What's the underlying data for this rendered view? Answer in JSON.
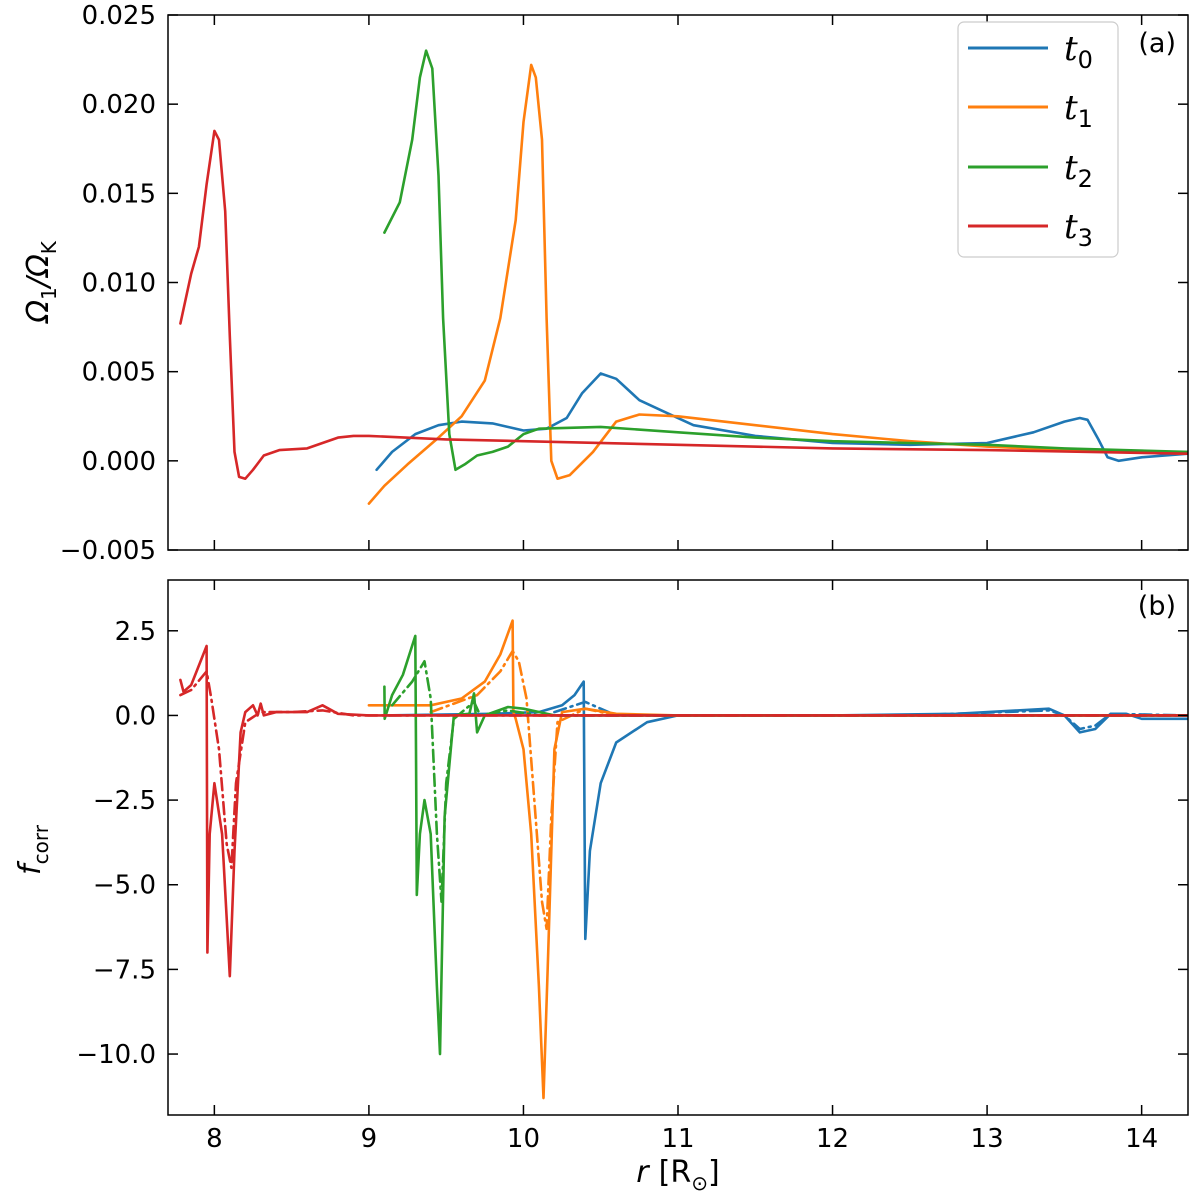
{
  "colors": {
    "t0": "#1f77b4",
    "t1": "#ff7f0e",
    "t2": "#2ca02c",
    "t3": "#d62728"
  },
  "chart_data": [
    {
      "type": "line",
      "panel_label": "(a)",
      "ylabel_main": "Ω",
      "ylabel_sub_num": "1",
      "ylabel_slash": "/Ω",
      "ylabel_sub_den": "K",
      "xlim": [
        7.7,
        14.3
      ],
      "ylim": [
        -0.005,
        0.025
      ],
      "yticks": [
        -0.005,
        0.0,
        0.005,
        0.01,
        0.015,
        0.02,
        0.025
      ],
      "ytick_labels": [
        "−0.005",
        "0.000",
        "0.005",
        "0.010",
        "0.015",
        "0.020",
        "0.025"
      ],
      "legend_position": "top-right",
      "legend": [
        {
          "base": "t",
          "sub": "0",
          "color_key": "t0"
        },
        {
          "base": "t",
          "sub": "1",
          "color_key": "t1"
        },
        {
          "base": "t",
          "sub": "2",
          "color_key": "t2"
        },
        {
          "base": "t",
          "sub": "3",
          "color_key": "t3"
        }
      ],
      "series": [
        {
          "color_key": "t0",
          "points": [
            [
              9.05,
              -0.0005
            ],
            [
              9.15,
              0.0005
            ],
            [
              9.3,
              0.0015
            ],
            [
              9.45,
              0.002
            ],
            [
              9.6,
              0.0022
            ],
            [
              9.8,
              0.0021
            ],
            [
              10.0,
              0.0017
            ],
            [
              10.15,
              0.0018
            ],
            [
              10.28,
              0.0024
            ],
            [
              10.38,
              0.0038
            ],
            [
              10.5,
              0.0049
            ],
            [
              10.6,
              0.0046
            ],
            [
              10.75,
              0.0034
            ],
            [
              10.9,
              0.0028
            ],
            [
              11.1,
              0.002
            ],
            [
              11.5,
              0.0014
            ],
            [
              12.0,
              0.001
            ],
            [
              12.5,
              0.0009
            ],
            [
              13.0,
              0.001
            ],
            [
              13.3,
              0.0016
            ],
            [
              13.5,
              0.0022
            ],
            [
              13.6,
              0.0024
            ],
            [
              13.65,
              0.0023
            ],
            [
              13.72,
              0.0012
            ],
            [
              13.78,
              0.0002
            ],
            [
              13.85,
              0.0
            ],
            [
              14.0,
              0.0002
            ],
            [
              14.3,
              0.0004
            ]
          ]
        },
        {
          "color_key": "t1",
          "points": [
            [
              9.0,
              -0.0024
            ],
            [
              9.1,
              -0.0014
            ],
            [
              9.25,
              -0.0002
            ],
            [
              9.45,
              0.0013
            ],
            [
              9.6,
              0.0025
            ],
            [
              9.75,
              0.0045
            ],
            [
              9.85,
              0.008
            ],
            [
              9.95,
              0.0135
            ],
            [
              10.0,
              0.019
            ],
            [
              10.05,
              0.0222
            ],
            [
              10.08,
              0.0215
            ],
            [
              10.12,
              0.018
            ],
            [
              10.15,
              0.008
            ],
            [
              10.18,
              0.0
            ],
            [
              10.22,
              -0.001
            ],
            [
              10.3,
              -0.0008
            ],
            [
              10.45,
              0.0005
            ],
            [
              10.6,
              0.0022
            ],
            [
              10.75,
              0.0026
            ],
            [
              11.0,
              0.0025
            ],
            [
              11.5,
              0.002
            ],
            [
              12.0,
              0.0015
            ],
            [
              12.5,
              0.0011
            ],
            [
              13.0,
              0.0008
            ],
            [
              13.5,
              0.0006
            ],
            [
              14.3,
              0.0004
            ]
          ]
        },
        {
          "color_key": "t2",
          "points": [
            [
              9.1,
              0.0128
            ],
            [
              9.2,
              0.0145
            ],
            [
              9.28,
              0.018
            ],
            [
              9.33,
              0.0215
            ],
            [
              9.37,
              0.023
            ],
            [
              9.41,
              0.022
            ],
            [
              9.45,
              0.016
            ],
            [
              9.48,
              0.008
            ],
            [
              9.52,
              0.0015
            ],
            [
              9.56,
              -0.0005
            ],
            [
              9.62,
              -0.0002
            ],
            [
              9.7,
              0.0003
            ],
            [
              9.8,
              0.0005
            ],
            [
              9.9,
              0.0008
            ],
            [
              10.0,
              0.0015
            ],
            [
              10.1,
              0.0018
            ],
            [
              10.5,
              0.0019
            ],
            [
              11.0,
              0.0016
            ],
            [
              11.5,
              0.0013
            ],
            [
              12.0,
              0.0011
            ],
            [
              12.5,
              0.001
            ],
            [
              13.0,
              0.0009
            ],
            [
              13.5,
              0.0007
            ],
            [
              14.3,
              0.0005
            ]
          ]
        },
        {
          "color_key": "t3",
          "points": [
            [
              7.78,
              0.0077
            ],
            [
              7.85,
              0.0105
            ],
            [
              7.9,
              0.012
            ],
            [
              7.95,
              0.0155
            ],
            [
              8.0,
              0.0185
            ],
            [
              8.03,
              0.018
            ],
            [
              8.07,
              0.014
            ],
            [
              8.1,
              0.007
            ],
            [
              8.13,
              0.0005
            ],
            [
              8.16,
              -0.0009
            ],
            [
              8.2,
              -0.001
            ],
            [
              8.25,
              -0.0005
            ],
            [
              8.32,
              0.0003
            ],
            [
              8.42,
              0.0006
            ],
            [
              8.6,
              0.0007
            ],
            [
              8.7,
              0.001
            ],
            [
              8.8,
              0.0013
            ],
            [
              8.9,
              0.0014
            ],
            [
              9.0,
              0.0014
            ],
            [
              9.5,
              0.0012
            ],
            [
              10.0,
              0.0011
            ],
            [
              11.0,
              0.0009
            ],
            [
              12.0,
              0.0007
            ],
            [
              13.0,
              0.0006
            ],
            [
              14.3,
              0.0004
            ]
          ]
        }
      ]
    },
    {
      "type": "line",
      "panel_label": "(b)",
      "ylabel_main": "f",
      "ylabel_sub": "corr",
      "xlabel_main": "r",
      "xlabel_unit_open": "[R",
      "xlabel_unit_sub": "⊙",
      "xlabel_unit_close": "]",
      "xlim": [
        7.7,
        14.3
      ],
      "ylim": [
        -11.8,
        4.0
      ],
      "yticks": [
        -10.0,
        -7.5,
        -5.0,
        -2.5,
        0.0,
        2.5
      ],
      "ytick_labels": [
        "−10.0",
        "−7.5",
        "−5.0",
        "−2.5",
        "0.0",
        "2.5"
      ],
      "xticks": [
        8,
        9,
        10,
        11,
        12,
        13,
        14
      ],
      "xtick_labels": [
        "8",
        "9",
        "10",
        "11",
        "12",
        "13",
        "14"
      ],
      "series": [
        {
          "color_key": "t0",
          "style": "solid",
          "points": [
            [
              9.1,
              0.0
            ],
            [
              9.8,
              0.05
            ],
            [
              10.1,
              0.1
            ],
            [
              10.25,
              0.3
            ],
            [
              10.33,
              0.6
            ],
            [
              10.39,
              1.0
            ],
            [
              10.395,
              -3.0
            ],
            [
              10.4,
              -6.6
            ],
            [
              10.43,
              -4.0
            ],
            [
              10.5,
              -2.0
            ],
            [
              10.6,
              -0.8
            ],
            [
              10.8,
              -0.2
            ],
            [
              11.0,
              0.0
            ],
            [
              12.0,
              0.0
            ],
            [
              12.8,
              0.05
            ],
            [
              13.2,
              0.15
            ],
            [
              13.4,
              0.2
            ],
            [
              13.5,
              0.0
            ],
            [
              13.6,
              -0.5
            ],
            [
              13.7,
              -0.4
            ],
            [
              13.8,
              0.05
            ],
            [
              13.9,
              0.05
            ],
            [
              14.0,
              -0.1
            ],
            [
              14.3,
              -0.1
            ]
          ]
        },
        {
          "color_key": "t0",
          "style": "dashdot",
          "points": [
            [
              10.2,
              0.1
            ],
            [
              10.4,
              0.4
            ],
            [
              10.5,
              0.2
            ],
            [
              10.6,
              0.0
            ],
            [
              12.5,
              0.0
            ],
            [
              13.4,
              0.15
            ],
            [
              13.5,
              0.0
            ],
            [
              13.6,
              -0.4
            ],
            [
              13.7,
              -0.3
            ],
            [
              13.8,
              0.05
            ],
            [
              14.3,
              0.0
            ]
          ]
        },
        {
          "color_key": "t1",
          "style": "solid",
          "points": [
            [
              9.0,
              0.3
            ],
            [
              9.4,
              0.3
            ],
            [
              9.6,
              0.5
            ],
            [
              9.75,
              1.0
            ],
            [
              9.85,
              1.8
            ],
            [
              9.93,
              2.8
            ],
            [
              9.935,
              0.1
            ],
            [
              9.95,
              -0.1
            ],
            [
              10.0,
              -1.0
            ],
            [
              10.05,
              -3.5
            ],
            [
              10.1,
              -8.0
            ],
            [
              10.13,
              -11.3
            ],
            [
              10.16,
              -7.0
            ],
            [
              10.2,
              -1.0
            ],
            [
              10.25,
              0.1
            ],
            [
              10.4,
              0.2
            ],
            [
              10.6,
              0.05
            ],
            [
              11.0,
              0.0
            ],
            [
              14.3,
              0.0
            ]
          ]
        },
        {
          "color_key": "t1",
          "style": "dashdot",
          "points": [
            [
              9.4,
              0.1
            ],
            [
              9.7,
              0.6
            ],
            [
              9.85,
              1.3
            ],
            [
              9.93,
              1.9
            ],
            [
              9.97,
              1.6
            ],
            [
              10.02,
              0.5
            ],
            [
              10.07,
              -2.5
            ],
            [
              10.12,
              -5.5
            ],
            [
              10.15,
              -6.3
            ],
            [
              10.18,
              -3.0
            ],
            [
              10.22,
              -0.2
            ],
            [
              10.4,
              0.2
            ],
            [
              10.6,
              0.0
            ],
            [
              14.3,
              0.0
            ]
          ]
        },
        {
          "color_key": "t2",
          "style": "solid",
          "points": [
            [
              9.1,
              0.85
            ],
            [
              9.102,
              -0.1
            ],
            [
              9.15,
              0.6
            ],
            [
              9.22,
              1.2
            ],
            [
              9.3,
              2.35
            ],
            [
              9.305,
              -1.0
            ],
            [
              9.31,
              -5.3
            ],
            [
              9.33,
              -3.5
            ],
            [
              9.36,
              -2.5
            ],
            [
              9.4,
              -3.5
            ],
            [
              9.44,
              -8.0
            ],
            [
              9.46,
              -10.0
            ],
            [
              9.49,
              -3.0
            ],
            [
              9.55,
              0.0
            ],
            [
              9.65,
              0.05
            ],
            [
              9.68,
              0.65
            ],
            [
              9.7,
              -0.5
            ],
            [
              9.75,
              0.0
            ],
            [
              9.9,
              0.25
            ],
            [
              10.0,
              0.2
            ],
            [
              10.2,
              0.0
            ],
            [
              14.3,
              0.0
            ]
          ]
        },
        {
          "color_key": "t2",
          "style": "dashdot",
          "points": [
            [
              9.15,
              0.3
            ],
            [
              9.28,
              1.0
            ],
            [
              9.36,
              1.6
            ],
            [
              9.4,
              0.5
            ],
            [
              9.44,
              -3.5
            ],
            [
              9.47,
              -5.5
            ],
            [
              9.5,
              -2.0
            ],
            [
              9.55,
              -0.1
            ],
            [
              9.68,
              0.4
            ],
            [
              9.72,
              0.0
            ],
            [
              9.9,
              0.15
            ],
            [
              10.1,
              0.0
            ],
            [
              14.3,
              0.0
            ]
          ]
        },
        {
          "color_key": "t3",
          "style": "solid",
          "points": [
            [
              7.78,
              1.05
            ],
            [
              7.8,
              0.7
            ],
            [
              7.85,
              0.9
            ],
            [
              7.95,
              2.05
            ],
            [
              7.955,
              -7.0
            ],
            [
              7.97,
              -3.5
            ],
            [
              8.0,
              -2.0
            ],
            [
              8.05,
              -3.5
            ],
            [
              8.08,
              -6.0
            ],
            [
              8.1,
              -7.7
            ],
            [
              8.13,
              -4.0
            ],
            [
              8.17,
              -0.5
            ],
            [
              8.2,
              0.1
            ],
            [
              8.25,
              0.3
            ],
            [
              8.28,
              0.0
            ],
            [
              8.3,
              0.35
            ],
            [
              8.32,
              0.0
            ],
            [
              8.4,
              0.1
            ],
            [
              8.6,
              0.1
            ],
            [
              8.7,
              0.3
            ],
            [
              8.8,
              0.05
            ],
            [
              9.0,
              0.0
            ],
            [
              14.3,
              0.0
            ]
          ]
        },
        {
          "color_key": "t3",
          "style": "dashdot",
          "points": [
            [
              7.78,
              0.6
            ],
            [
              7.85,
              0.75
            ],
            [
              7.95,
              1.3
            ],
            [
              7.98,
              0.5
            ],
            [
              8.03,
              -1.0
            ],
            [
              8.08,
              -3.8
            ],
            [
              8.11,
              -4.5
            ],
            [
              8.14,
              -2.0
            ],
            [
              8.2,
              -0.2
            ],
            [
              8.3,
              0.1
            ],
            [
              8.5,
              0.1
            ],
            [
              8.7,
              0.15
            ],
            [
              8.9,
              0.0
            ],
            [
              14.3,
              0.0
            ]
          ]
        }
      ]
    }
  ]
}
